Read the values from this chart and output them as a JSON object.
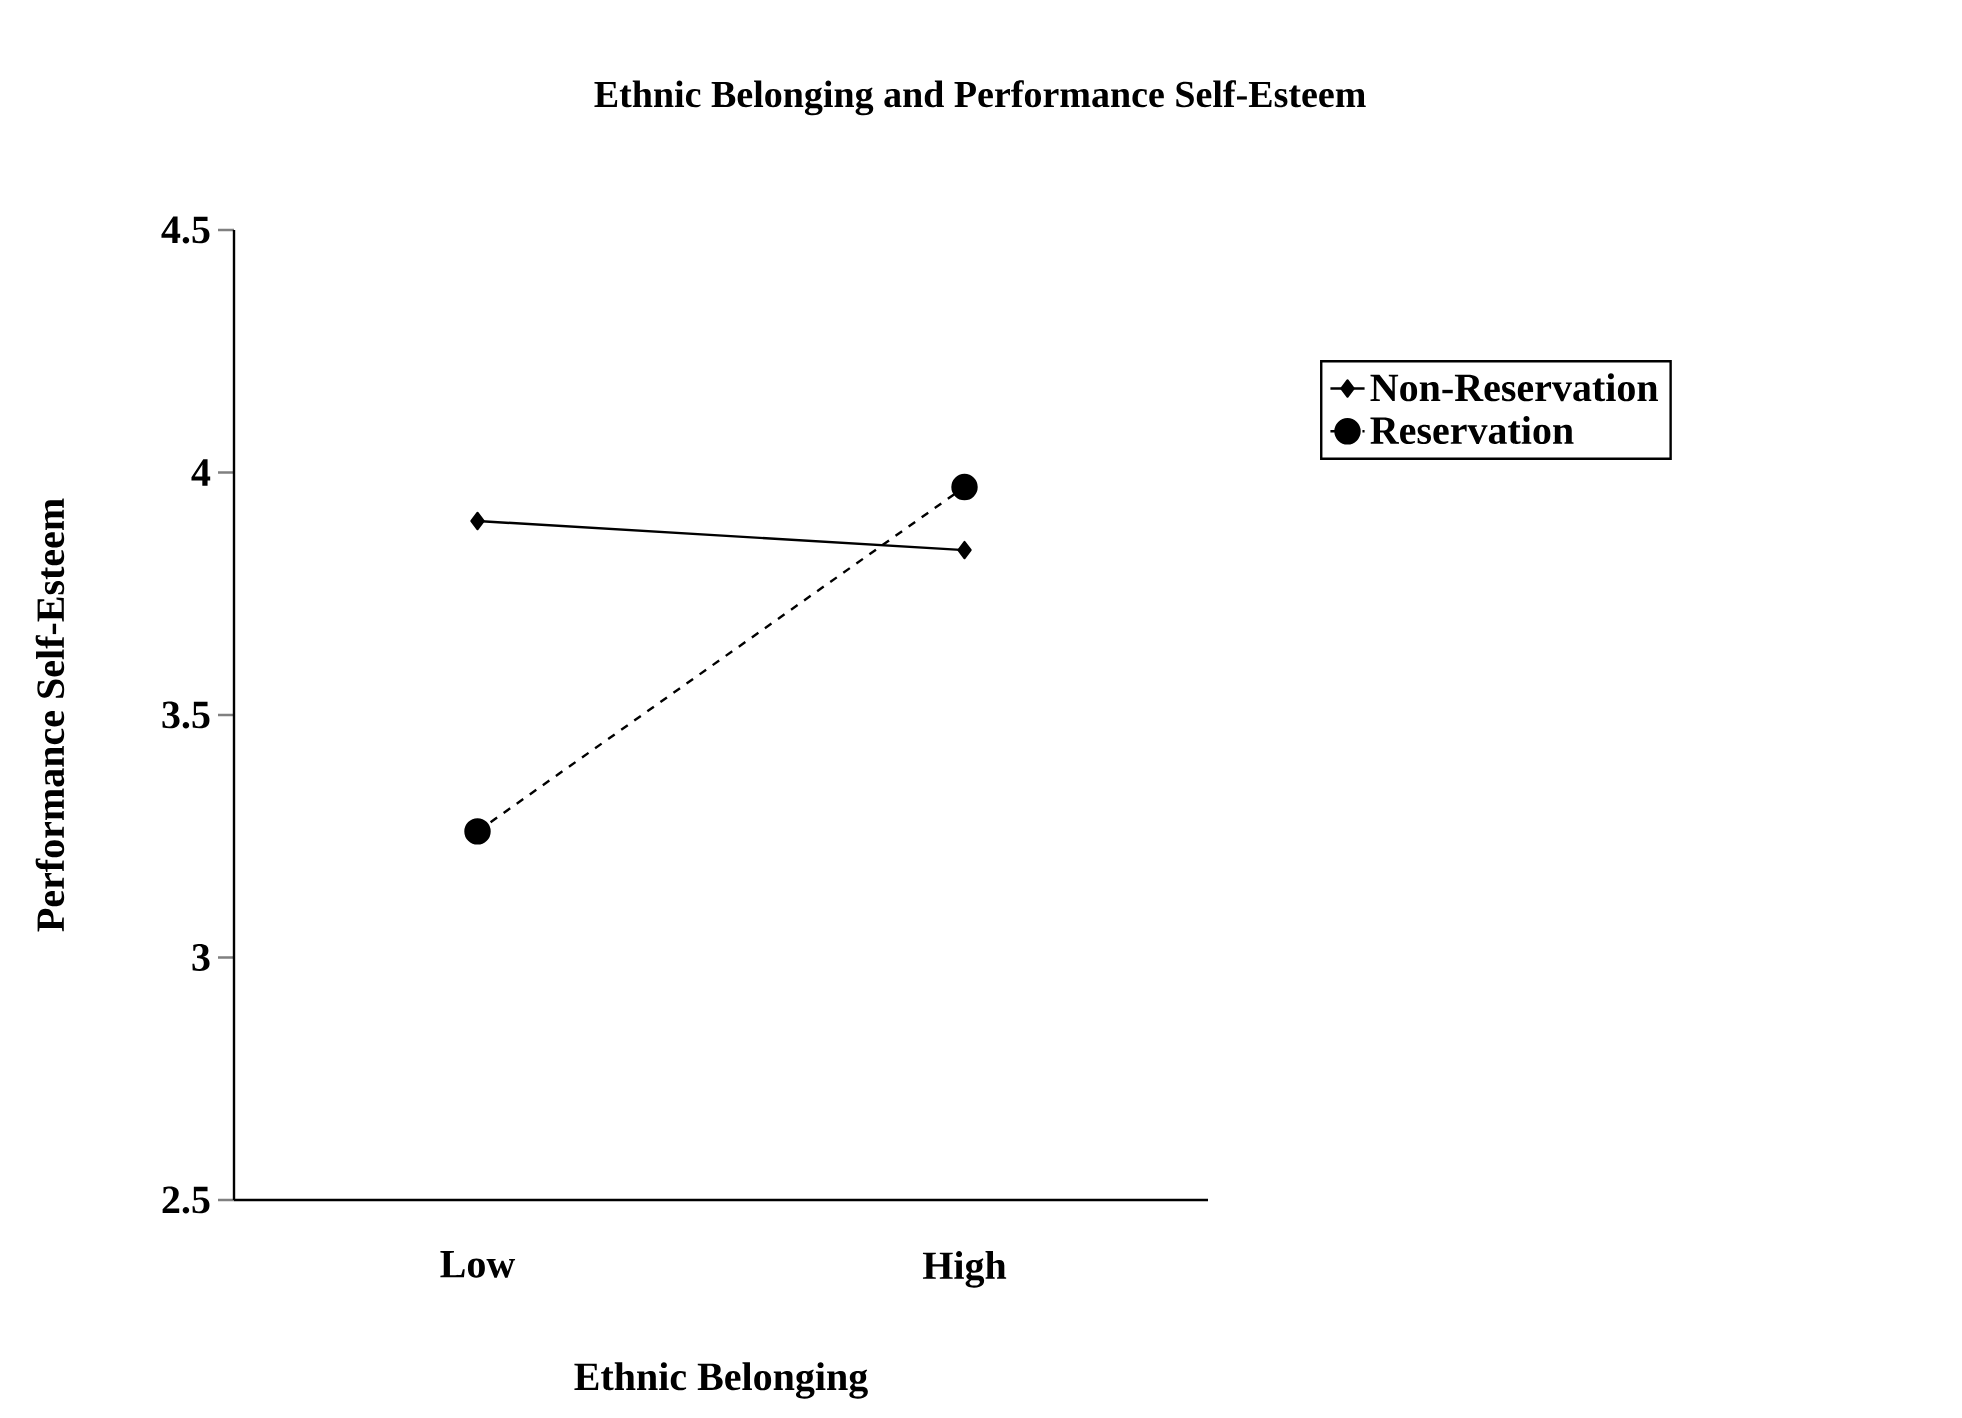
{
  "chart_data": {
    "type": "line",
    "title": "Ethnic Belonging and Performance Self-Esteem",
    "xlabel": "Ethnic Belonging",
    "ylabel": "Performance Self-Esteem",
    "categories": [
      "Low",
      "High"
    ],
    "series": [
      {
        "name": "Non-Reservation",
        "color": "#000000",
        "values": [
          3.9,
          3.84
        ],
        "marker": "diamond",
        "line_style": "solid"
      },
      {
        "name": "Reservation",
        "color": "#000000",
        "values": [
          3.26,
          3.97
        ],
        "marker": "circle",
        "line_style": "dashed"
      }
    ],
    "ylim": [
      2.5,
      4.5
    ],
    "yticks": [
      2.5,
      3,
      3.5,
      4,
      4.5
    ],
    "grid": false,
    "legend": "right"
  }
}
